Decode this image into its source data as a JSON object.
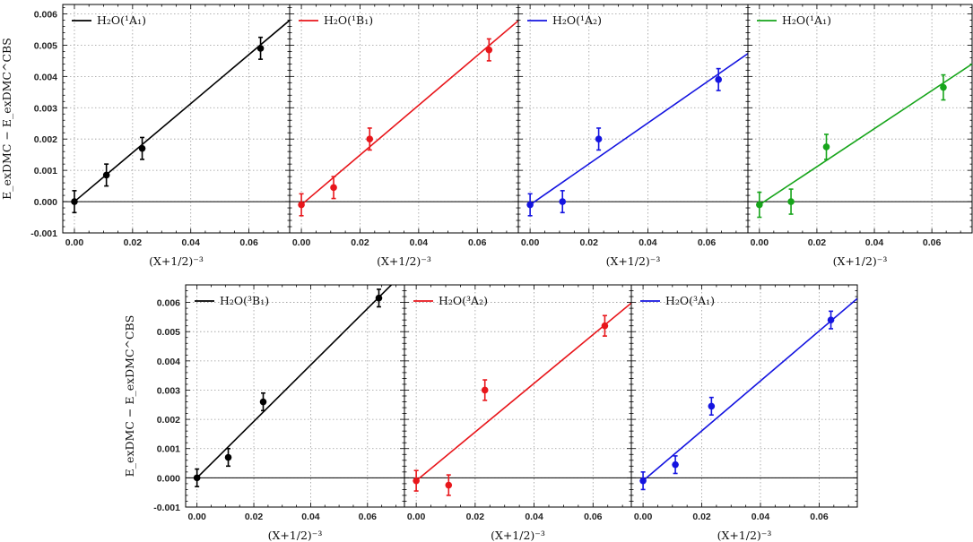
{
  "chart_data": [
    {
      "type": "scatter",
      "legend": "H₂O(¹A₁)",
      "color": "#000000",
      "ylabel": "E_exDMC − E_exDMC^CBS",
      "xlabel": "(X+1/2)⁻³",
      "xlim": [
        -0.004,
        0.074
      ],
      "ylim": [
        -0.001,
        0.0063
      ],
      "xticks": [
        "0.00",
        "0.02",
        "0.04",
        "0.06"
      ],
      "yticks": [
        "-0.001",
        "0.000",
        "0.001",
        "0.002",
        "0.003",
        "0.004",
        "0.005",
        "0.006"
      ],
      "show_yticks": true,
      "points": [
        {
          "x": 0.0,
          "y": 0.0,
          "err": 0.00035
        },
        {
          "x": 0.011,
          "y": 0.00085,
          "err": 0.00035
        },
        {
          "x": 0.0233,
          "y": 0.0017,
          "err": 0.00035
        },
        {
          "x": 0.064,
          "y": 0.0049,
          "err": 0.00035
        }
      ],
      "fit": {
        "slope": 0.0783,
        "intercept": 0.0
      }
    },
    {
      "type": "scatter",
      "legend": "H₂O(¹B₁)",
      "color": "#e8161b",
      "ylabel": "",
      "xlabel": "(X+1/2)⁻³",
      "xlim": [
        -0.004,
        0.074
      ],
      "ylim": [
        -0.001,
        0.0063
      ],
      "xticks": [
        "0.00",
        "0.02",
        "0.04",
        "0.06"
      ],
      "yticks": [],
      "show_yticks": false,
      "points": [
        {
          "x": 0.0,
          "y": -0.0001,
          "err": 0.00035
        },
        {
          "x": 0.011,
          "y": 0.00045,
          "err": 0.00035
        },
        {
          "x": 0.0233,
          "y": 0.002,
          "err": 0.00035
        },
        {
          "x": 0.064,
          "y": 0.00485,
          "err": 0.00035
        }
      ],
      "fit": {
        "slope": 0.0795,
        "intercept": -0.0001
      }
    },
    {
      "type": "scatter",
      "legend": "H₂O(¹A₂)",
      "color": "#1414e0",
      "ylabel": "",
      "xlabel": "(X+1/2)⁻³",
      "xlim": [
        -0.004,
        0.074
      ],
      "ylim": [
        -0.001,
        0.0063
      ],
      "xticks": [
        "0.00",
        "0.02",
        "0.04",
        "0.06"
      ],
      "yticks": [],
      "show_yticks": false,
      "points": [
        {
          "x": 0.0,
          "y": -0.0001,
          "err": 0.00035
        },
        {
          "x": 0.011,
          "y": 0.0,
          "err": 0.00035
        },
        {
          "x": 0.0233,
          "y": 0.002,
          "err": 0.00035
        },
        {
          "x": 0.064,
          "y": 0.0039,
          "err": 0.00035
        }
      ],
      "fit": {
        "slope": 0.0653,
        "intercept": -0.0001
      }
    },
    {
      "type": "scatter",
      "legend": "H₂O(¹A₁)",
      "color": "#17a51b",
      "ylabel": "",
      "xlabel": "(X+1/2)⁻³",
      "xlim": [
        -0.004,
        0.074
      ],
      "ylim": [
        -0.001,
        0.0063
      ],
      "xticks": [
        "0.00",
        "0.02",
        "0.04",
        "0.06"
      ],
      "yticks": [],
      "show_yticks": false,
      "points": [
        {
          "x": 0.0,
          "y": -0.0001,
          "err": 0.0004
        },
        {
          "x": 0.011,
          "y": 0.0,
          "err": 0.0004
        },
        {
          "x": 0.0233,
          "y": 0.00175,
          "err": 0.0004
        },
        {
          "x": 0.064,
          "y": 0.00365,
          "err": 0.0004
        }
      ],
      "fit": {
        "slope": 0.0608,
        "intercept": -0.0001
      }
    },
    {
      "type": "scatter",
      "legend": "H₂O(³B₁)",
      "color": "#000000",
      "ylabel": "E_exDMC − E_exDMC^CBS",
      "xlabel": "(X+1/2)⁻³",
      "xlim": [
        -0.004,
        0.073
      ],
      "ylim": [
        -0.001,
        0.0066
      ],
      "xticks": [
        "0.00",
        "0.02",
        "0.04",
        "0.06"
      ],
      "yticks": [
        "-0.001",
        "0.000",
        "0.001",
        "0.002",
        "0.003",
        "0.004",
        "0.005",
        "0.006"
      ],
      "show_yticks": true,
      "points": [
        {
          "x": 0.0,
          "y": 0.0,
          "err": 0.0003
        },
        {
          "x": 0.011,
          "y": 0.0007,
          "err": 0.0003
        },
        {
          "x": 0.0233,
          "y": 0.0026,
          "err": 0.0003
        },
        {
          "x": 0.064,
          "y": 0.00615,
          "err": 0.0003
        }
      ],
      "fit": {
        "slope": 0.0965,
        "intercept": 0.0
      }
    },
    {
      "type": "scatter",
      "legend": "H₂O(³A₂)",
      "color": "#e8161b",
      "ylabel": "",
      "xlabel": "(X+1/2)⁻³",
      "xlim": [
        -0.004,
        0.073
      ],
      "ylim": [
        -0.001,
        0.0066
      ],
      "xticks": [
        "0.00",
        "0.02",
        "0.04",
        "0.06"
      ],
      "yticks": [],
      "show_yticks": false,
      "points": [
        {
          "x": 0.0,
          "y": -0.0001,
          "err": 0.00035
        },
        {
          "x": 0.011,
          "y": -0.00025,
          "err": 0.00035
        },
        {
          "x": 0.0233,
          "y": 0.003,
          "err": 0.00035
        },
        {
          "x": 0.064,
          "y": 0.0052,
          "err": 0.00035
        }
      ],
      "fit": {
        "slope": 0.0833,
        "intercept": -0.0001
      }
    },
    {
      "type": "scatter",
      "legend": "H₂O(³A₁)",
      "color": "#1414e0",
      "ylabel": "",
      "xlabel": "(X+1/2)⁻³",
      "xlim": [
        -0.004,
        0.073
      ],
      "ylim": [
        -0.001,
        0.0066
      ],
      "xticks": [
        "0.00",
        "0.02",
        "0.04",
        "0.06"
      ],
      "yticks": [],
      "show_yticks": false,
      "points": [
        {
          "x": 0.0,
          "y": -0.0001,
          "err": 0.0003
        },
        {
          "x": 0.011,
          "y": 0.00045,
          "err": 0.0003
        },
        {
          "x": 0.0233,
          "y": 0.00245,
          "err": 0.0003
        },
        {
          "x": 0.064,
          "y": 0.0054,
          "err": 0.0003
        }
      ],
      "fit": {
        "slope": 0.0854,
        "intercept": -0.0001
      }
    }
  ]
}
